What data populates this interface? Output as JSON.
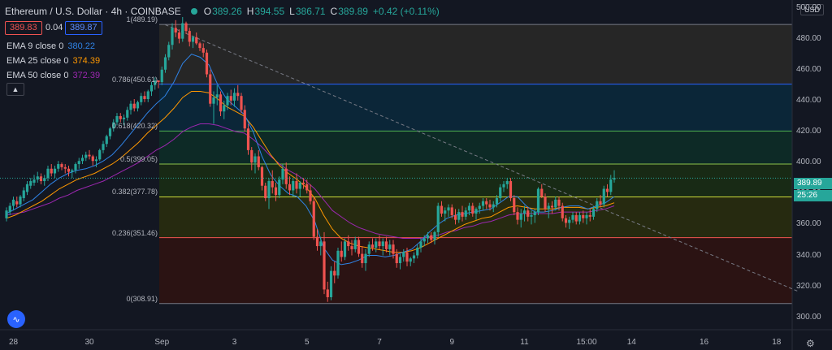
{
  "header": {
    "title": "Ethereum / U.S. Dollar · 4h · COINBASE",
    "ohlc": [
      {
        "label": "O",
        "value": "389.26"
      },
      {
        "label": "H",
        "value": "394.55"
      },
      {
        "label": "L",
        "value": "386.71"
      },
      {
        "label": "C",
        "value": "389.89"
      },
      {
        "label": "",
        "value": "+0.42 (+0.11%)"
      }
    ]
  },
  "quote": {
    "bid": "389.83",
    "spread": "0.04",
    "ask": "389.87"
  },
  "indicators": [
    {
      "name": "EMA 9 close 0",
      "value": "380.22",
      "color": "#2f83e6"
    },
    {
      "name": "EMA 25 close 0",
      "value": "374.39",
      "color": "#ff9800"
    },
    {
      "name": "EMA 50 close 0",
      "value": "372.39",
      "color": "#9c27b0"
    }
  ],
  "collapse_icon": "chevron-up-icon",
  "currency": "USD",
  "last_price": {
    "value": "389.89",
    "countdown": "25:26",
    "color": "#26a69a"
  },
  "colors": {
    "up": "#26a69a",
    "down": "#ef5350",
    "trendline": "#787b86"
  },
  "chart_data": {
    "type": "candlestick",
    "ylim": [
      292,
      505
    ],
    "y_ticks": [
      "500.00",
      "480.00",
      "460.00",
      "440.00",
      "420.00",
      "400.00",
      "380.00",
      "360.00",
      "340.00",
      "320.00",
      "300.00"
    ],
    "y_tick_values": [
      500,
      480,
      460,
      440,
      420,
      400,
      380,
      360,
      340,
      320,
      300
    ],
    "x_ticks": [
      "28",
      "30",
      "Sep",
      "3",
      "5",
      "7",
      "9",
      "11",
      "15:00",
      "14",
      "16",
      "18"
    ],
    "x_tick_bars": [
      2,
      24,
      45,
      66,
      87,
      108,
      129,
      150,
      168,
      181,
      202,
      223
    ],
    "fibonacci": [
      {
        "level": "1",
        "price": 489.19,
        "label": "1(489.19)",
        "line": "#787b86",
        "fill": "#262626"
      },
      {
        "level": "0.786",
        "price": 450.61,
        "label": "0.786(450.61)",
        "line": "#2962ff",
        "fill": "#0b2638"
      },
      {
        "level": "0.618",
        "price": 420.32,
        "label": "0.618(420.32)",
        "line": "#4caf50",
        "fill": "#0d2a26"
      },
      {
        "level": "0.5",
        "price": 399.05,
        "label": "0.5(399.05)",
        "line": "#8bc34a",
        "fill": "#182a15"
      },
      {
        "level": "0.382",
        "price": 377.78,
        "label": "0.382(377.78)",
        "line": "#cddc39",
        "fill": "#262a10"
      },
      {
        "level": "0.236",
        "price": 351.46,
        "label": "0.236(351.46)",
        "line": "#ef5350",
        "fill": "#2b1313"
      },
      {
        "level": "0",
        "price": 308.91,
        "label": "0(308.91)",
        "line": "#787b86",
        "fill": "#2b1313"
      }
    ],
    "trendline": {
      "start": [
        46,
        489
      ],
      "end": [
        229,
        317
      ]
    },
    "candles": [
      [
        364,
        371,
        362,
        369
      ],
      [
        368,
        374,
        366,
        372
      ],
      [
        372,
        378,
        369,
        376
      ],
      [
        375,
        378,
        371,
        373
      ],
      [
        373,
        379,
        371,
        378
      ],
      [
        377,
        384,
        375,
        382
      ],
      [
        381,
        388,
        379,
        386
      ],
      [
        385,
        390,
        383,
        388
      ],
      [
        387,
        392,
        385,
        389
      ],
      [
        389,
        394,
        387,
        391
      ],
      [
        391,
        393,
        386,
        388
      ],
      [
        388,
        392,
        385,
        390
      ],
      [
        390,
        398,
        388,
        396
      ],
      [
        396,
        399,
        391,
        393
      ],
      [
        393,
        398,
        390,
        396
      ],
      [
        396,
        401,
        394,
        399
      ],
      [
        399,
        400,
        395,
        397
      ],
      [
        397,
        399,
        393,
        396
      ],
      [
        396,
        398,
        391,
        394
      ],
      [
        394,
        396,
        390,
        395
      ],
      [
        395,
        400,
        393,
        399
      ],
      [
        399,
        403,
        396,
        401
      ],
      [
        401,
        405,
        399,
        403
      ],
      [
        403,
        407,
        401,
        405
      ],
      [
        405,
        408,
        402,
        404
      ],
      [
        404,
        405,
        398,
        401
      ],
      [
        401,
        404,
        397,
        402
      ],
      [
        402,
        409,
        401,
        408
      ],
      [
        408,
        414,
        406,
        412
      ],
      [
        412,
        418,
        410,
        417
      ],
      [
        417,
        423,
        415,
        422
      ],
      [
        422,
        428,
        420,
        426
      ],
      [
        426,
        432,
        424,
        430
      ],
      [
        430,
        432,
        426,
        428
      ],
      [
        428,
        431,
        424,
        429
      ],
      [
        429,
        436,
        427,
        434
      ],
      [
        434,
        440,
        431,
        438
      ],
      [
        438,
        441,
        433,
        435
      ],
      [
        435,
        440,
        433,
        439
      ],
      [
        439,
        445,
        437,
        443
      ],
      [
        443,
        446,
        439,
        441
      ],
      [
        441,
        447,
        439,
        446
      ],
      [
        446,
        452,
        443,
        450
      ],
      [
        450,
        455,
        447,
        453
      ],
      [
        453,
        453,
        448,
        452
      ],
      [
        452,
        462,
        450,
        460
      ],
      [
        460,
        470,
        458,
        468
      ],
      [
        468,
        478,
        466,
        476
      ],
      [
        476,
        490,
        473,
        487
      ],
      [
        487,
        492,
        481,
        484
      ],
      [
        484,
        486,
        477,
        480
      ],
      [
        480,
        494,
        478,
        490
      ],
      [
        490,
        491,
        483,
        485
      ],
      [
        485,
        487,
        475,
        478
      ],
      [
        478,
        482,
        474,
        481
      ],
      [
        481,
        484,
        476,
        477
      ],
      [
        477,
        478,
        472,
        474
      ],
      [
        474,
        477,
        468,
        471
      ],
      [
        471,
        473,
        455,
        457
      ],
      [
        457,
        460,
        436,
        438
      ],
      [
        438,
        446,
        425,
        442
      ],
      [
        442,
        450,
        437,
        444
      ],
      [
        444,
        446,
        430,
        433
      ],
      [
        433,
        440,
        428,
        437
      ],
      [
        437,
        445,
        434,
        443
      ],
      [
        443,
        447,
        437,
        440
      ],
      [
        440,
        448,
        436,
        445
      ],
      [
        445,
        450,
        440,
        443
      ],
      [
        443,
        445,
        432,
        434
      ],
      [
        434,
        437,
        420,
        422
      ],
      [
        422,
        425,
        405,
        408
      ],
      [
        408,
        410,
        395,
        400
      ],
      [
        400,
        406,
        393,
        404
      ],
      [
        404,
        408,
        395,
        397
      ],
      [
        397,
        398,
        382,
        385
      ],
      [
        385,
        387,
        375,
        377
      ],
      [
        377,
        390,
        370,
        388
      ],
      [
        388,
        395,
        380,
        384
      ],
      [
        384,
        387,
        375,
        379
      ],
      [
        379,
        391,
        377,
        389
      ],
      [
        389,
        399,
        386,
        396
      ],
      [
        396,
        400,
        383,
        386
      ],
      [
        386,
        391,
        379,
        382
      ],
      [
        382,
        390,
        378,
        388
      ],
      [
        388,
        393,
        380,
        383
      ],
      [
        383,
        388,
        378,
        387
      ],
      [
        387,
        390,
        383,
        386
      ],
      [
        386,
        389,
        380,
        382
      ],
      [
        382,
        386,
        373,
        375
      ],
      [
        375,
        378,
        350,
        352
      ],
      [
        352,
        357,
        343,
        346
      ],
      [
        346,
        352,
        340,
        349
      ],
      [
        349,
        355,
        315,
        318
      ],
      [
        318,
        323,
        310,
        313
      ],
      [
        313,
        333,
        311,
        330
      ],
      [
        330,
        336,
        322,
        327
      ],
      [
        327,
        345,
        325,
        343
      ],
      [
        343,
        349,
        336,
        339
      ],
      [
        339,
        351,
        337,
        349
      ],
      [
        349,
        353,
        343,
        346
      ],
      [
        346,
        350,
        340,
        344
      ],
      [
        344,
        352,
        342,
        350
      ],
      [
        350,
        352,
        339,
        341
      ],
      [
        341,
        346,
        332,
        335
      ],
      [
        335,
        344,
        330,
        341
      ],
      [
        341,
        349,
        339,
        347
      ],
      [
        347,
        351,
        343,
        345
      ],
      [
        345,
        351,
        342,
        349
      ],
      [
        349,
        353,
        344,
        346
      ],
      [
        346,
        351,
        340,
        349
      ],
      [
        349,
        352,
        342,
        344
      ],
      [
        344,
        350,
        340,
        347
      ],
      [
        347,
        350,
        338,
        341
      ],
      [
        341,
        344,
        332,
        335
      ],
      [
        335,
        341,
        331,
        339
      ],
      [
        339,
        344,
        336,
        342
      ],
      [
        342,
        345,
        333,
        336
      ],
      [
        336,
        339,
        333,
        338
      ],
      [
        338,
        342,
        335,
        340
      ],
      [
        340,
        347,
        338,
        345
      ],
      [
        345,
        351,
        342,
        349
      ],
      [
        349,
        353,
        346,
        351
      ],
      [
        351,
        355,
        348,
        353
      ],
      [
        353,
        355,
        348,
        350
      ],
      [
        350,
        356,
        347,
        355
      ],
      [
        355,
        374,
        352,
        372
      ],
      [
        372,
        375,
        365,
        367
      ],
      [
        367,
        371,
        362,
        369
      ],
      [
        369,
        373,
        365,
        371
      ],
      [
        371,
        373,
        364,
        366
      ],
      [
        366,
        370,
        360,
        363
      ],
      [
        363,
        370,
        361,
        368
      ],
      [
        368,
        372,
        362,
        365
      ],
      [
        365,
        371,
        363,
        369
      ],
      [
        369,
        374,
        366,
        372
      ],
      [
        372,
        374,
        365,
        367
      ],
      [
        367,
        371,
        363,
        370
      ],
      [
        370,
        374,
        367,
        372
      ],
      [
        372,
        377,
        369,
        375
      ],
      [
        375,
        377,
        370,
        373
      ],
      [
        373,
        376,
        369,
        371
      ],
      [
        371,
        375,
        368,
        373
      ],
      [
        373,
        379,
        371,
        377
      ],
      [
        377,
        386,
        375,
        384
      ],
      [
        384,
        388,
        381,
        386
      ],
      [
        386,
        390,
        383,
        388
      ],
      [
        388,
        390,
        375,
        377
      ],
      [
        377,
        379,
        366,
        368
      ],
      [
        368,
        371,
        360,
        363
      ],
      [
        363,
        370,
        358,
        367
      ],
      [
        367,
        372,
        362,
        369
      ],
      [
        369,
        371,
        362,
        365
      ],
      [
        365,
        369,
        360,
        366
      ],
      [
        366,
        370,
        361,
        368
      ],
      [
        368,
        384,
        366,
        383
      ],
      [
        383,
        386,
        377,
        378
      ],
      [
        378,
        380,
        368,
        370
      ],
      [
        370,
        374,
        364,
        372
      ],
      [
        372,
        375,
        367,
        371
      ],
      [
        371,
        378,
        369,
        376
      ],
      [
        376,
        378,
        369,
        372
      ],
      [
        372,
        374,
        362,
        364
      ],
      [
        364,
        366,
        358,
        361
      ],
      [
        361,
        365,
        357,
        363
      ],
      [
        363,
        368,
        361,
        366
      ],
      [
        366,
        368,
        360,
        362
      ],
      [
        362,
        368,
        360,
        366
      ],
      [
        366,
        369,
        361,
        364
      ],
      [
        364,
        368,
        360,
        366
      ],
      [
        366,
        370,
        362,
        365
      ],
      [
        365,
        372,
        363,
        370
      ],
      [
        370,
        377,
        368,
        375
      ],
      [
        375,
        379,
        371,
        373
      ],
      [
        373,
        385,
        371,
        383
      ],
      [
        383,
        386,
        378,
        381
      ],
      [
        381,
        392,
        379,
        389
      ],
      [
        389,
        395,
        387,
        390
      ]
    ],
    "ema9": [
      367,
      370,
      373,
      376,
      381,
      386,
      390,
      393,
      395,
      396,
      398,
      401,
      405,
      411,
      418,
      425,
      432,
      438,
      443,
      452,
      464,
      470,
      468,
      463,
      450,
      441,
      436,
      431,
      420,
      404,
      392,
      385,
      380,
      378,
      372,
      362,
      345,
      337,
      334,
      335,
      337,
      340,
      340,
      339,
      340,
      342,
      344,
      349,
      355,
      360,
      364,
      366,
      367,
      368,
      369,
      370,
      374,
      378,
      378,
      372,
      368,
      368,
      369,
      371,
      372,
      372,
      370,
      372,
      374,
      378
    ],
    "ema25": [
      364,
      366,
      369,
      372,
      375,
      379,
      383,
      386,
      389,
      391,
      393,
      396,
      399,
      403,
      408,
      413,
      419,
      424,
      429,
      435,
      442,
      446,
      446,
      445,
      441,
      436,
      433,
      430,
      423,
      414,
      405,
      398,
      393,
      389,
      384,
      377,
      366,
      357,
      351,
      348,
      346,
      345,
      344,
      343,
      342,
      342,
      343,
      345,
      348,
      351,
      354,
      357,
      360,
      362,
      364,
      365,
      368,
      371,
      372,
      371,
      370,
      370,
      370,
      371,
      371,
      371,
      370,
      371,
      372,
      374
    ],
    "ema50": [
      366,
      367,
      368,
      370,
      372,
      374,
      377,
      379,
      382,
      384,
      386,
      388,
      391,
      394,
      397,
      400,
      404,
      408,
      411,
      415,
      420,
      423,
      425,
      425,
      424,
      422,
      420,
      419,
      415,
      410,
      404,
      399,
      395,
      392,
      388,
      383,
      376,
      369,
      365,
      361,
      358,
      356,
      354,
      353,
      352,
      351,
      351,
      351,
      352,
      353,
      355,
      356,
      358,
      359,
      361,
      362,
      364,
      366,
      367,
      367,
      367,
      367,
      367,
      368,
      368,
      368,
      368,
      369,
      370,
      372
    ]
  }
}
